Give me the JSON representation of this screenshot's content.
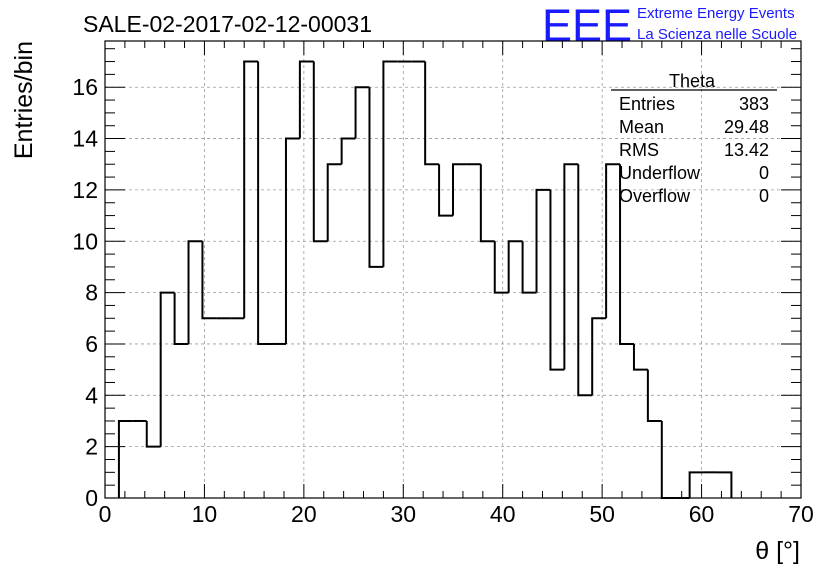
{
  "chart_data": {
    "type": "bar",
    "title": "SALE-02-2017-02-12-00031",
    "xlabel": "θ [°]",
    "ylabel": "Entries/bin",
    "xlim": [
      0,
      70
    ],
    "ylim": [
      0,
      17.8
    ],
    "grid": true,
    "x_ticks": [
      "0",
      "10",
      "20",
      "30",
      "40",
      "50",
      "60",
      "70"
    ],
    "y_ticks": [
      "0",
      "2",
      "4",
      "6",
      "8",
      "10",
      "12",
      "14",
      "16"
    ],
    "bin_width": 1.4,
    "bin_start": 1.4,
    "values": [
      3,
      3,
      2,
      8,
      6,
      10,
      7,
      7,
      7,
      17,
      6,
      6,
      14,
      17,
      10,
      13,
      14,
      16,
      9,
      17,
      17,
      17,
      13,
      11,
      13,
      13,
      10,
      8,
      10,
      8,
      12,
      5,
      13,
      4,
      7,
      13,
      6,
      5,
      3,
      0,
      0,
      1,
      1,
      1
    ]
  },
  "stats_box": {
    "title": "Theta",
    "rows": [
      {
        "label": "Entries",
        "value": "383"
      },
      {
        "label": "Mean",
        "value": "29.48"
      },
      {
        "label": "RMS",
        "value": "13.42"
      },
      {
        "label": "Underflow",
        "value": "0"
      },
      {
        "label": "Overflow",
        "value": "0"
      }
    ]
  },
  "logo": {
    "mark": "EEE",
    "line1": "Extreme Energy Events",
    "line2": "La Scienza nelle Scuole",
    "color": "#1a1aff"
  }
}
